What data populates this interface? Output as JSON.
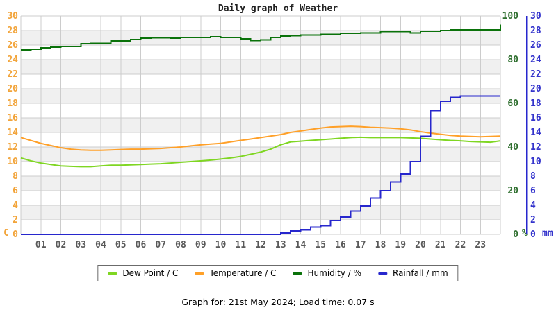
{
  "page": {
    "title": "Daily graph of Weather",
    "footer": "Graph for: 21st May 2024; Load time: 0.07 s"
  },
  "legend": {
    "items": [
      {
        "label": "Dew Point / C",
        "color": "#7fd622"
      },
      {
        "label": "Temperature / C",
        "color": "#ffa028"
      },
      {
        "label": "Humidity / %",
        "color": "#0a720a"
      },
      {
        "label": "Rainfall / mm",
        "color": "#2727cd"
      }
    ]
  },
  "chart_data": {
    "type": "line",
    "title": "Daily graph of Weather",
    "x_range": [
      0,
      24
    ],
    "x_tick_labels": [
      "01",
      "02",
      "03",
      "04",
      "05",
      "06",
      "07",
      "08",
      "09",
      "10",
      "11",
      "12",
      "13",
      "14",
      "15",
      "16",
      "17",
      "18",
      "19",
      "20",
      "21",
      "22",
      "23"
    ],
    "x_tick_color": "#595959",
    "plot": {
      "band_colors": [
        "#ffffff",
        "#f0f0f0"
      ],
      "grid_color": "#cccccc"
    },
    "axes": {
      "left": {
        "unit": "C",
        "range": [
          0,
          30
        ],
        "ticks": [
          0,
          2,
          4,
          6,
          8,
          10,
          12,
          14,
          16,
          18,
          20,
          22,
          24,
          26,
          28,
          30
        ],
        "color": "#f2a43a"
      },
      "percent": {
        "unit": "%",
        "range": [
          0,
          100
        ],
        "ticks": [
          0,
          20,
          40,
          60,
          80,
          100
        ],
        "color": "#2f6f2f"
      },
      "mm": {
        "unit": "mm",
        "range": [
          0,
          30
        ],
        "ticks": [
          0,
          2,
          4,
          6,
          8,
          10,
          12,
          14,
          16,
          18,
          20,
          22,
          24,
          26,
          28,
          30
        ],
        "color": "#3333cc",
        "axis_line_color": "#2727cd"
      }
    },
    "x": [
      0,
      0.5,
      1,
      1.5,
      2,
      2.5,
      3,
      3.5,
      4,
      4.5,
      5,
      5.5,
      6,
      6.5,
      7,
      7.5,
      8,
      8.5,
      9,
      9.5,
      10,
      10.5,
      11,
      11.5,
      12,
      12.5,
      13,
      13.5,
      14,
      14.5,
      15,
      15.5,
      16,
      16.5,
      17,
      17.5,
      18,
      18.5,
      19,
      19.5,
      20,
      20.5,
      21,
      21.5,
      22,
      22.5,
      23,
      23.5,
      24
    ],
    "series": [
      {
        "name": "Dew Point / C",
        "axis": "C",
        "color": "#7fd622",
        "step": false,
        "values": [
          10.5,
          10.1,
          9.8,
          9.6,
          9.4,
          9.35,
          9.3,
          9.3,
          9.4,
          9.5,
          9.5,
          9.55,
          9.6,
          9.65,
          9.7,
          9.8,
          9.9,
          10.0,
          10.1,
          10.2,
          10.35,
          10.5,
          10.7,
          11.0,
          11.3,
          11.7,
          12.3,
          12.7,
          12.8,
          12.9,
          13.0,
          13.1,
          13.2,
          13.3,
          13.35,
          13.3,
          13.3,
          13.3,
          13.3,
          13.25,
          13.2,
          13.1,
          13.0,
          12.9,
          12.85,
          12.75,
          12.7,
          12.65,
          12.85
        ]
      },
      {
        "name": "Temperature / C",
        "axis": "C",
        "color": "#ffa028",
        "step": false,
        "values": [
          13.3,
          12.9,
          12.5,
          12.2,
          11.9,
          11.7,
          11.6,
          11.55,
          11.55,
          11.6,
          11.65,
          11.7,
          11.7,
          11.75,
          11.8,
          11.9,
          12.0,
          12.15,
          12.3,
          12.4,
          12.5,
          12.7,
          12.9,
          13.1,
          13.3,
          13.5,
          13.7,
          14.0,
          14.2,
          14.4,
          14.6,
          14.75,
          14.8,
          14.85,
          14.8,
          14.7,
          14.65,
          14.6,
          14.5,
          14.35,
          14.1,
          13.9,
          13.75,
          13.6,
          13.5,
          13.45,
          13.4,
          13.45,
          13.5
        ]
      },
      {
        "name": "Humidity / %",
        "axis": "%",
        "color": "#0a720a",
        "step": true,
        "values": [
          84.4,
          84.8,
          85.4,
          85.7,
          86.0,
          86.0,
          87.3,
          87.5,
          87.5,
          88.6,
          88.6,
          89.2,
          89.8,
          90.0,
          90.0,
          89.8,
          90.2,
          90.2,
          90.2,
          90.5,
          90.2,
          90.2,
          89.5,
          88.8,
          89.0,
          90.2,
          90.8,
          91.0,
          91.3,
          91.3,
          91.6,
          91.6,
          92.0,
          92.0,
          92.2,
          92.2,
          92.9,
          92.9,
          92.9,
          92.2,
          93.0,
          93.0,
          93.3,
          93.7,
          93.7,
          93.7,
          93.7,
          93.7,
          96.0
        ]
      },
      {
        "name": "Rainfall / mm",
        "axis": "mm",
        "color": "#2727cd",
        "step": true,
        "values": [
          0,
          0,
          0,
          0,
          0,
          0,
          0,
          0,
          0,
          0,
          0,
          0,
          0,
          0,
          0,
          0,
          0,
          0,
          0,
          0,
          0,
          0,
          0,
          0,
          0,
          0,
          0.2,
          0.5,
          0.6,
          1.0,
          1.2,
          1.9,
          2.4,
          3.2,
          3.9,
          5.0,
          6.0,
          7.2,
          8.3,
          10.0,
          13.5,
          17.0,
          18.3,
          18.8,
          19.0,
          19.0,
          19.0,
          19.0,
          19.0
        ]
      }
    ]
  }
}
